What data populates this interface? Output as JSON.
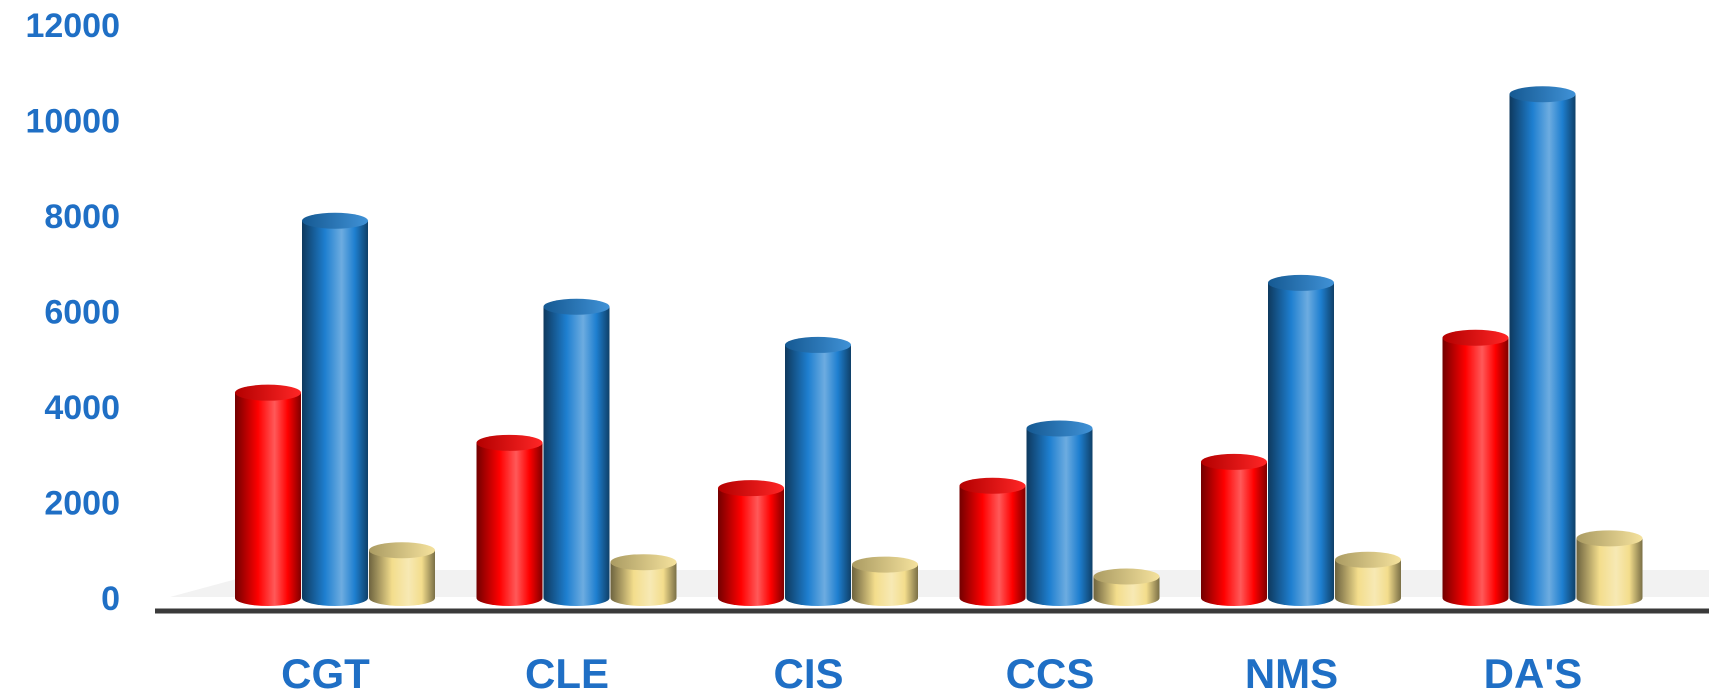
{
  "chart_data": {
    "type": "bar",
    "categories": [
      "CGT",
      "CLE",
      "CIS",
      "CCS",
      "NMS",
      "DA'S"
    ],
    "series": [
      {
        "color": "#ff0000",
        "values": [
          4300,
          3250,
          2300,
          2350,
          2850,
          5450
        ]
      },
      {
        "color": "#1e7fd0",
        "values": [
          7900,
          6100,
          5300,
          3550,
          6600,
          10550
        ]
      },
      {
        "color": "#f3dd8c",
        "values": [
          1000,
          750,
          700,
          450,
          800,
          1250
        ]
      }
    ],
    "ylim": [
      0,
      12000
    ],
    "yticks": [
      "0",
      "2000",
      "4000",
      "6000",
      "8000",
      "10000",
      "12000"
    ],
    "grid": false,
    "title": "",
    "xlabel": "",
    "ylabel": "",
    "axis_label_color": "#1f6fc5"
  }
}
